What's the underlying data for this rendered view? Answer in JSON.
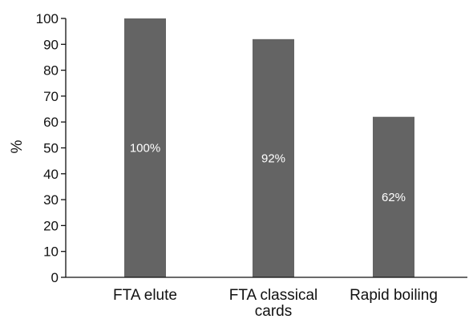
{
  "chart_data": {
    "type": "bar",
    "categories": [
      "FTA elute",
      [
        "FTA classical",
        "cards"
      ],
      "Rapid boiling"
    ],
    "values": [
      100,
      92,
      62
    ],
    "data_labels": [
      "100%",
      "92%",
      "62%"
    ],
    "ylabel": "%",
    "xlabel": "",
    "ylim": [
      0,
      100
    ],
    "yticks": [
      0,
      10,
      20,
      30,
      40,
      50,
      60,
      70,
      80,
      90,
      100
    ],
    "grid": false,
    "legend": "none",
    "bar_color": "#646464"
  }
}
